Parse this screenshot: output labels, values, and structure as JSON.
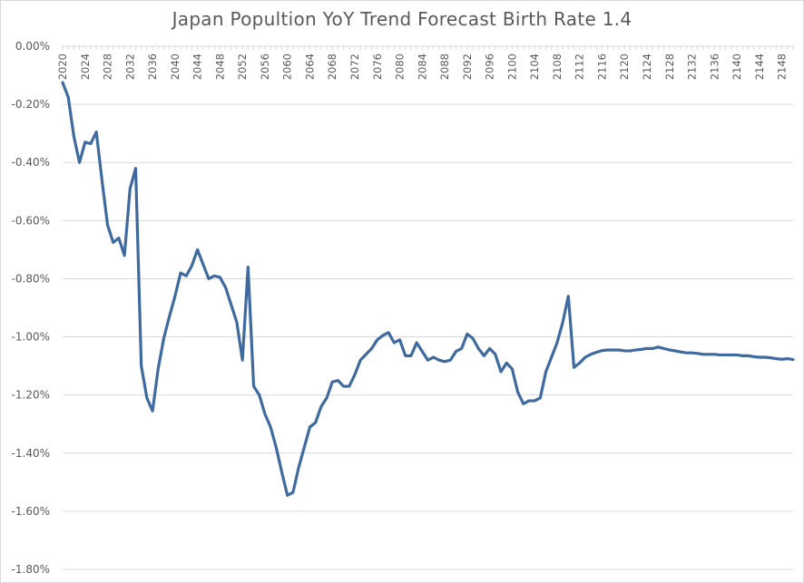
{
  "chart_data": {
    "type": "line",
    "title": "Japan Popultion YoY Trend Forecast Birth Rate 1.4",
    "xlabel": "",
    "ylabel": "",
    "ylim": [
      -0.018,
      0
    ],
    "ytick_labels": [
      "0.00%",
      "-0.20%",
      "-0.40%",
      "-0.60%",
      "-0.80%",
      "-1.00%",
      "-1.20%",
      "-1.40%",
      "-1.60%",
      "-1.80%"
    ],
    "ytick_values": [
      0,
      -0.002,
      -0.004,
      -0.006,
      -0.008,
      -0.01,
      -0.012,
      -0.014,
      -0.016,
      -0.018
    ],
    "xlim": [
      2020,
      2150
    ],
    "xtick_labels": [
      "2020",
      "2024",
      "2028",
      "2032",
      "2036",
      "2040",
      "2044",
      "2048",
      "2052",
      "2056",
      "2060",
      "2064",
      "2068",
      "2072",
      "2076",
      "2080",
      "2084",
      "2088",
      "2092",
      "2096",
      "2100",
      "2104",
      "2108",
      "2112",
      "2116",
      "2120",
      "2124",
      "2128",
      "2132",
      "2136",
      "2140",
      "2144",
      "2148"
    ],
    "grid": "horizontal",
    "legend": "none",
    "line_color": "#3f6aa0",
    "series": [
      {
        "x": [
          2020,
          2021,
          2022,
          2023,
          2024,
          2025,
          2026,
          2027,
          2028,
          2029,
          2030,
          2031,
          2032,
          2033,
          2034,
          2035,
          2036,
          2037,
          2038,
          2039,
          2040,
          2041,
          2042,
          2043,
          2044,
          2045,
          2046,
          2047,
          2048,
          2049,
          2050,
          2051,
          2052,
          2053,
          2054,
          2055,
          2056,
          2057,
          2058,
          2059,
          2060,
          2061,
          2062,
          2063,
          2064,
          2065,
          2066,
          2067,
          2068,
          2069,
          2070,
          2071,
          2072,
          2073,
          2074,
          2075,
          2076,
          2077,
          2078,
          2079,
          2080,
          2081,
          2082,
          2083,
          2084,
          2085,
          2086,
          2087,
          2088,
          2089,
          2090,
          2091,
          2092,
          2093,
          2094,
          2095,
          2096,
          2097,
          2098,
          2099,
          2100,
          2101,
          2102,
          2103,
          2104,
          2105,
          2106,
          2107,
          2108,
          2109,
          2110,
          2111,
          2112,
          2113,
          2114,
          2115,
          2116,
          2117,
          2118,
          2119,
          2120,
          2121,
          2122,
          2123,
          2124,
          2125,
          2126,
          2127,
          2128,
          2129,
          2130,
          2131,
          2132,
          2133,
          2134,
          2135,
          2136,
          2137,
          2138,
          2139,
          2140,
          2141,
          2142,
          2143,
          2144,
          2145,
          2146,
          2147,
          2148,
          2149,
          2150
        ],
        "values": [
          -0.00125,
          -0.00175,
          -0.0031,
          -0.004,
          -0.0033,
          -0.00335,
          -0.00295,
          -0.0046,
          -0.00615,
          -0.00675,
          -0.0066,
          -0.0072,
          -0.0049,
          -0.0042,
          -0.011,
          -0.0121,
          -0.01255,
          -0.0111,
          -0.01005,
          -0.0093,
          -0.0086,
          -0.0078,
          -0.0079,
          -0.00755,
          -0.007,
          -0.0075,
          -0.008,
          -0.0079,
          -0.00795,
          -0.0083,
          -0.0089,
          -0.0095,
          -0.0108,
          -0.0076,
          -0.0117,
          -0.012,
          -0.01265,
          -0.0131,
          -0.0138,
          -0.01465,
          -0.01545,
          -0.01535,
          -0.0145,
          -0.0138,
          -0.0131,
          -0.01295,
          -0.0124,
          -0.0121,
          -0.01155,
          -0.0115,
          -0.0117,
          -0.0117,
          -0.0113,
          -0.0108,
          -0.0106,
          -0.0104,
          -0.0101,
          -0.00995,
          -0.00985,
          -0.0102,
          -0.0101,
          -0.01065,
          -0.01065,
          -0.0102,
          -0.0105,
          -0.0108,
          -0.0107,
          -0.0108,
          -0.01085,
          -0.0108,
          -0.0105,
          -0.0104,
          -0.0099,
          -0.01005,
          -0.0104,
          -0.01065,
          -0.0104,
          -0.0106,
          -0.0112,
          -0.0109,
          -0.0111,
          -0.0119,
          -0.0123,
          -0.0122,
          -0.0122,
          -0.0121,
          -0.0112,
          -0.0107,
          -0.0102,
          -0.0095,
          -0.0086,
          -0.01105,
          -0.0109,
          -0.0107,
          -0.0106,
          -0.01053,
          -0.01047,
          -0.01045,
          -0.01045,
          -0.01045,
          -0.01048,
          -0.01048,
          -0.01045,
          -0.01043,
          -0.0104,
          -0.0104,
          -0.01035,
          -0.0104,
          -0.01045,
          -0.01048,
          -0.01052,
          -0.01055,
          -0.01055,
          -0.01057,
          -0.0106,
          -0.0106,
          -0.0106,
          -0.01062,
          -0.01062,
          -0.01062,
          -0.01062,
          -0.01065,
          -0.01065,
          -0.01068,
          -0.0107,
          -0.0107,
          -0.01072,
          -0.01075,
          -0.01077,
          -0.01075,
          -0.01078
        ]
      }
    ]
  }
}
